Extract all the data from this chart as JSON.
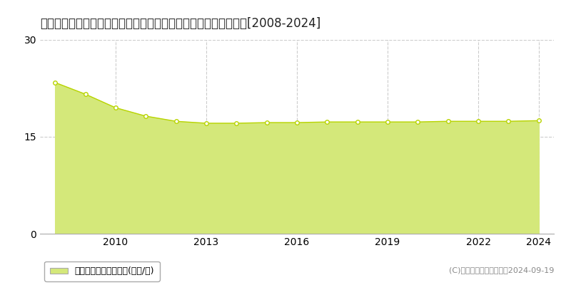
{
  "title": "埼玉県比企郡滑川町月の輪７丁目２３番８　基準地価　地価推移[2008-2024]",
  "years": [
    2008,
    2009,
    2010,
    2011,
    2012,
    2013,
    2014,
    2015,
    2016,
    2017,
    2018,
    2019,
    2020,
    2021,
    2022,
    2023,
    2024
  ],
  "values": [
    23.4,
    21.6,
    19.5,
    18.2,
    17.4,
    17.1,
    17.1,
    17.2,
    17.2,
    17.3,
    17.3,
    17.3,
    17.3,
    17.4,
    17.4,
    17.4,
    17.5
  ],
  "ylim": [
    0,
    30
  ],
  "yticks": [
    0,
    15,
    30
  ],
  "xticks": [
    2010,
    2013,
    2016,
    2019,
    2022,
    2024
  ],
  "line_color": "#b8d400",
  "fill_color": "#d4e87a",
  "marker_face_color": "#ffffff",
  "marker_edge_color": "#b8d400",
  "bg_color": "#ffffff",
  "plot_bg_color": "#ffffff",
  "grid_color": "#cccccc",
  "title_fontsize": 12,
  "tick_fontsize": 10,
  "legend_label": "基準地価　平均坪単価(万円/坪)",
  "copyright_text": "(C)土地価格ドットコム　2024-09-19",
  "xmin": 2007.5,
  "xmax": 2024.5
}
